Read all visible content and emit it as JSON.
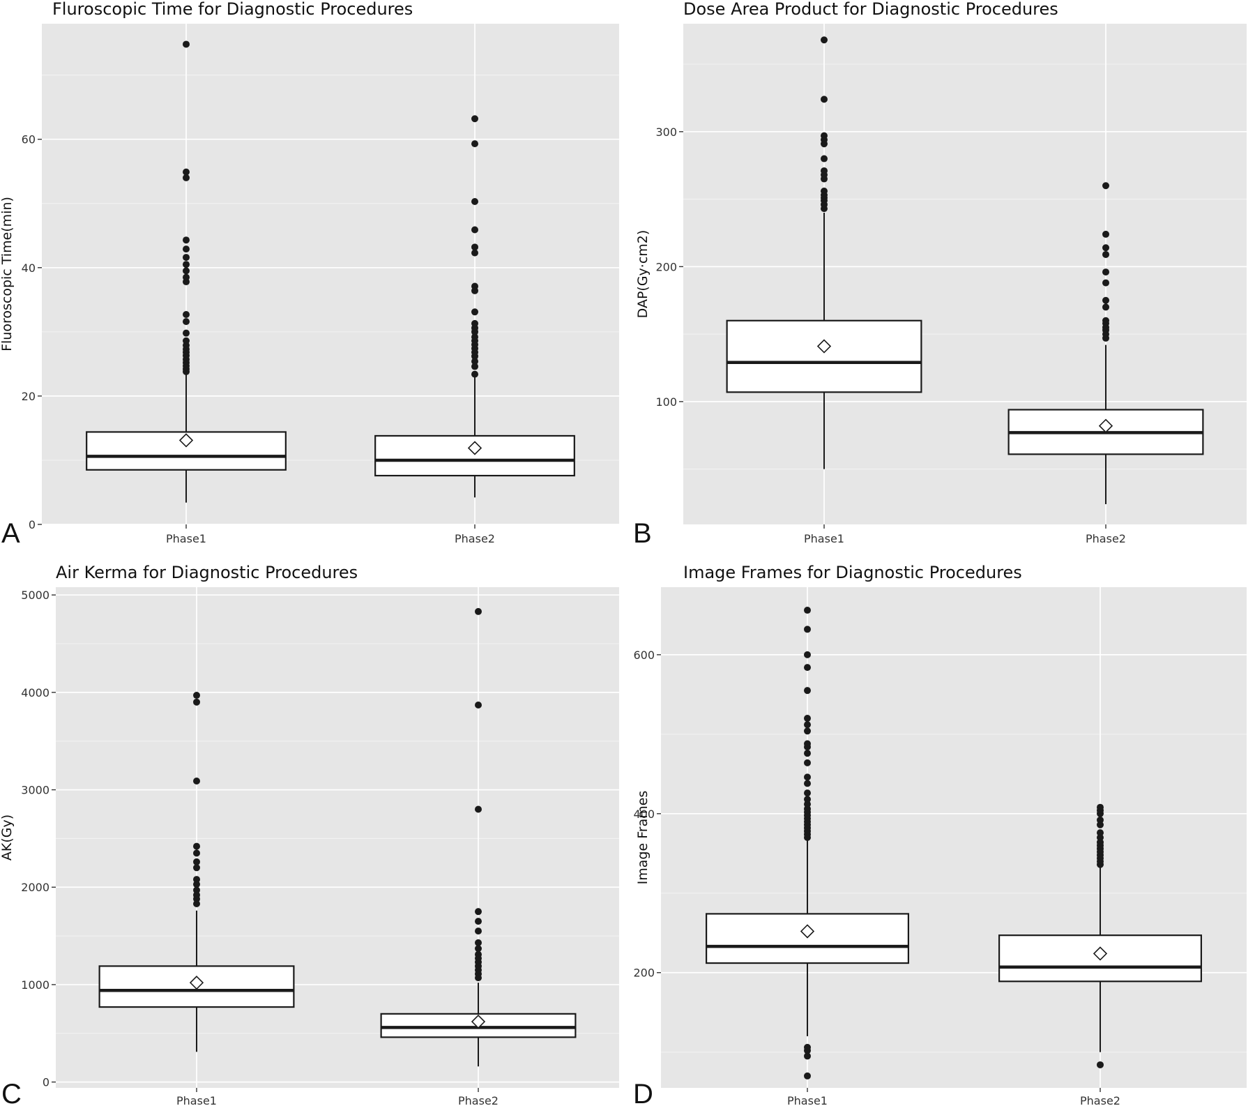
{
  "chart_data": [
    {
      "type": "boxplot",
      "letter": "A",
      "title": "Fluroscopic Time for Diagnostic Procedures",
      "xlabel": "",
      "ylabel": "Fluoroscopic Time(min)",
      "categories": [
        "Phase1",
        "Phase2"
      ],
      "ylim": [
        0,
        78
      ],
      "yticks": [
        0,
        20,
        40,
        60
      ],
      "grid": true,
      "series": [
        {
          "category": "Phase1",
          "whisker_low": 3.4,
          "q1": 8.5,
          "median": 10.6,
          "q3": 14.4,
          "whisker_high": 23.5,
          "mean": 13.1,
          "outliers": [
            23.8,
            24.2,
            24.7,
            25.2,
            25.7,
            26.3,
            26.8,
            27.3,
            27.9,
            28.6,
            29.8,
            31.6,
            32.7,
            37.8,
            38.5,
            39.5,
            40.5,
            41.6,
            42.9,
            44.3,
            54.0,
            54.9,
            74.8
          ]
        },
        {
          "category": "Phase2",
          "whisker_low": 4.2,
          "q1": 7.6,
          "median": 10.0,
          "q3": 13.8,
          "whisker_high": 23.2,
          "mean": 11.9,
          "outliers": [
            23.4,
            24.6,
            25.4,
            26.2,
            26.8,
            27.4,
            28.0,
            28.6,
            29.2,
            30.0,
            30.6,
            31.3,
            33.1,
            36.4,
            37.1,
            42.3,
            43.2,
            45.9,
            50.3,
            59.3,
            63.2
          ]
        }
      ]
    },
    {
      "type": "boxplot",
      "letter": "B",
      "title": "Dose Area Product for Diagnostic Procedures",
      "xlabel": "",
      "ylabel": "DAP(Gy·cm2)",
      "categories": [
        "Phase1",
        "Phase2"
      ],
      "ylim": [
        9,
        380
      ],
      "yticks": [
        100,
        200,
        300
      ],
      "grid": true,
      "series": [
        {
          "category": "Phase1",
          "whisker_low": 50,
          "q1": 107,
          "median": 129,
          "q3": 160,
          "whisker_high": 240,
          "mean": 141,
          "outliers": [
            243,
            246,
            249,
            251,
            253,
            256,
            265,
            268,
            271,
            280,
            291,
            294,
            297,
            324,
            368
          ]
        },
        {
          "category": "Phase2",
          "whisker_low": 24,
          "q1": 61,
          "median": 77,
          "q3": 94,
          "whisker_high": 142,
          "mean": 82,
          "outliers": [
            147,
            150,
            153,
            155,
            158,
            160,
            170,
            175,
            188,
            196,
            209,
            214,
            224,
            260
          ]
        }
      ]
    },
    {
      "type": "boxplot",
      "letter": "C",
      "title": "Air Kerma for Diagnostic Procedures",
      "xlabel": "",
      "ylabel": "AK(Gy)",
      "categories": [
        "Phase1",
        "Phase2"
      ],
      "ylim": [
        -60,
        5080
      ],
      "yticks": [
        0,
        1000,
        2000,
        3000,
        4000,
        5000
      ],
      "grid": true,
      "series": [
        {
          "category": "Phase1",
          "whisker_low": 310,
          "q1": 770,
          "median": 940,
          "q3": 1190,
          "whisker_high": 1760,
          "mean": 1020,
          "outliers": [
            1830,
            1880,
            1920,
            1970,
            2030,
            2080,
            2200,
            2260,
            2350,
            2420,
            3090,
            3900,
            3970
          ]
        },
        {
          "category": "Phase2",
          "whisker_low": 160,
          "q1": 460,
          "median": 560,
          "q3": 700,
          "whisker_high": 1020,
          "mean": 620,
          "outliers": [
            1070,
            1110,
            1150,
            1190,
            1230,
            1270,
            1310,
            1370,
            1430,
            1550,
            1650,
            1750,
            2800,
            3870,
            4830
          ]
        }
      ]
    },
    {
      "type": "boxplot",
      "letter": "D",
      "title": "Image Frames for Diagnostic Procedures",
      "xlabel": "",
      "ylabel": "Image Frames",
      "categories": [
        "Phase1",
        "Phase2"
      ],
      "ylim": [
        55,
        685
      ],
      "yticks": [
        200,
        400,
        600
      ],
      "grid": true,
      "series": [
        {
          "category": "Phase1",
          "whisker_low": 120,
          "q1": 212,
          "median": 233,
          "q3": 274,
          "whisker_high": 366,
          "mean": 252,
          "outliers": [
            70,
            95,
            102,
            106,
            370,
            374,
            378,
            382,
            386,
            390,
            394,
            398,
            402,
            406,
            412,
            418,
            426,
            438,
            446,
            464,
            476,
            484,
            488,
            504,
            512,
            520,
            555,
            584,
            600,
            632,
            656
          ]
        },
        {
          "category": "Phase2",
          "whisker_low": 100,
          "q1": 189,
          "median": 207,
          "q3": 247,
          "whisker_high": 333,
          "mean": 224,
          "outliers": [
            84,
            336,
            340,
            344,
            348,
            352,
            356,
            360,
            364,
            370,
            376,
            386,
            392,
            400,
            404,
            408
          ]
        }
      ]
    }
  ]
}
